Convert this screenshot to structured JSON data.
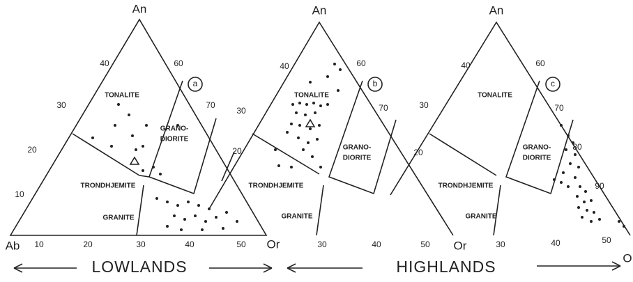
{
  "panels": [
    {
      "apex": "An",
      "left": "Ab",
      "right": "Or",
      "tag": "a",
      "fields": [
        "TONALITE",
        "GRANO-",
        "DIORITE",
        "TRONDHJEMITE",
        "GRANITE"
      ],
      "left_ticks": [
        "10",
        "20",
        "30",
        "40"
      ],
      "right_ticks": [
        "60",
        "70"
      ],
      "base_ticks": [
        "10",
        "20",
        "30",
        "40",
        "50"
      ]
    },
    {
      "apex": "An",
      "right": "Or",
      "tag": "b",
      "fields": [
        "TONALITE",
        "GRANO-",
        "DIORITE",
        "TRONDHJEMITE",
        "GRANITE"
      ],
      "left_ticks": [
        "20",
        "30",
        "40"
      ],
      "right_ticks": [
        "60",
        "70"
      ],
      "base_ticks": [
        "30",
        "40",
        "50"
      ]
    },
    {
      "apex": "An",
      "right": "O",
      "tag": "c",
      "fields": [
        "TONALITE",
        "GRANO-",
        "DIORITE",
        "TRONDHJEMITE",
        "GRANITE"
      ],
      "left_ticks": [
        "20",
        "30",
        "40"
      ],
      "right_ticks": [
        "60",
        "70",
        "80",
        "90"
      ],
      "base_ticks": [
        "30",
        "40",
        "50"
      ]
    }
  ],
  "footer": {
    "left": "LOWLANDS",
    "right": "HIGHLANDS"
  }
}
